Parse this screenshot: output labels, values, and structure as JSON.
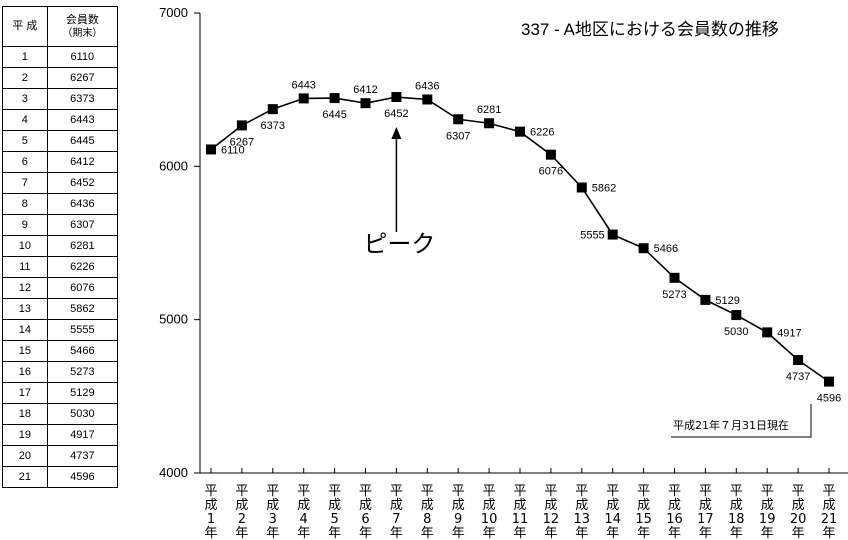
{
  "table": {
    "headers": {
      "year": "平 成",
      "members": "会員数",
      "members_sub": "（期末）"
    },
    "rows": [
      [
        "1",
        "6110"
      ],
      [
        "2",
        "6267"
      ],
      [
        "3",
        "6373"
      ],
      [
        "4",
        "6443"
      ],
      [
        "5",
        "6445"
      ],
      [
        "6",
        "6412"
      ],
      [
        "7",
        "6452"
      ],
      [
        "8",
        "6436"
      ],
      [
        "9",
        "6307"
      ],
      [
        "10",
        "6281"
      ],
      [
        "11",
        "6226"
      ],
      [
        "12",
        "6076"
      ],
      [
        "13",
        "5862"
      ],
      [
        "14",
        "5555"
      ],
      [
        "15",
        "5466"
      ],
      [
        "16",
        "5273"
      ],
      [
        "17",
        "5129"
      ],
      [
        "18",
        "5030"
      ],
      [
        "19",
        "4917"
      ],
      [
        "20",
        "4737"
      ],
      [
        "21",
        "4596"
      ]
    ]
  },
  "chart_data": {
    "type": "line",
    "title": "337 - A地区における会員数の推移",
    "categories": [
      "平成1年",
      "平成2年",
      "平成3年",
      "平成4年",
      "平成5年",
      "平成6年",
      "平成7年",
      "平成8年",
      "平成9年",
      "平成10年",
      "平成11年",
      "平成12年",
      "平成13年",
      "平成14年",
      "平成15年",
      "平成16年",
      "平成17年",
      "平成18年",
      "平成19年",
      "平成20年",
      "平成21年"
    ],
    "x_label_parts": [
      [
        "平",
        "成",
        "1",
        "年"
      ],
      [
        "平",
        "成",
        "2",
        "年"
      ],
      [
        "平",
        "成",
        "3",
        "年"
      ],
      [
        "平",
        "成",
        "4",
        "年"
      ],
      [
        "平",
        "成",
        "5",
        "年"
      ],
      [
        "平",
        "成",
        "6",
        "年"
      ],
      [
        "平",
        "成",
        "7",
        "年"
      ],
      [
        "平",
        "成",
        "8",
        "年"
      ],
      [
        "平",
        "成",
        "9",
        "年"
      ],
      [
        "平",
        "成",
        "10",
        "年"
      ],
      [
        "平",
        "成",
        "11",
        "年"
      ],
      [
        "平",
        "成",
        "12",
        "年"
      ],
      [
        "平",
        "成",
        "13",
        "年"
      ],
      [
        "平",
        "成",
        "14",
        "年"
      ],
      [
        "平",
        "成",
        "15",
        "年"
      ],
      [
        "平",
        "成",
        "16",
        "年"
      ],
      [
        "平",
        "成",
        "17",
        "年"
      ],
      [
        "平",
        "成",
        "18",
        "年"
      ],
      [
        "平",
        "成",
        "19",
        "年"
      ],
      [
        "平",
        "成",
        "20",
        "年"
      ],
      [
        "平",
        "成",
        "21",
        "年"
      ]
    ],
    "values": [
      6110,
      6267,
      6373,
      6443,
      6445,
      6412,
      6452,
      6436,
      6307,
      6281,
      6226,
      6076,
      5862,
      5555,
      5466,
      5273,
      5129,
      5030,
      4917,
      4737,
      4596
    ],
    "label_position": [
      "right",
      "below",
      "below",
      "above",
      "below",
      "above",
      "below",
      "above",
      "below",
      "above",
      "right",
      "below",
      "right",
      "left",
      "right",
      "below",
      "right",
      "below",
      "right",
      "below",
      "below"
    ],
    "ylim": [
      4000,
      7000
    ],
    "yticks": [
      "4000",
      "5000",
      "6000",
      "7000"
    ],
    "annotation": {
      "text": "ピーク",
      "points_to_index": 6
    },
    "note": "平成21年７月31日現在",
    "line_color": "#000000",
    "marker": "square"
  }
}
